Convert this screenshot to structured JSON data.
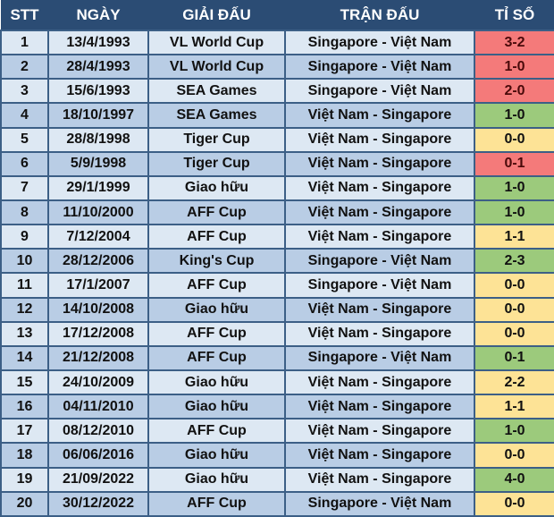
{
  "headers": [
    "STT",
    "NGÀY",
    "GIẢI ĐẤU",
    "TRẬN ĐẤU",
    "TỈ SỐ"
  ],
  "colors": {
    "header": "#2b4c74",
    "row_odd": "#dde8f3",
    "row_even": "#b9cde5",
    "loss": "#f47a7a",
    "win": "#9cca7c",
    "draw": "#fde396"
  },
  "rows": [
    {
      "stt": "1",
      "date": "13/4/1993",
      "event": "VL World Cup",
      "match": "Singapore - Việt Nam",
      "score": "3-2",
      "result": "loss"
    },
    {
      "stt": "2",
      "date": "28/4/1993",
      "event": "VL World Cup",
      "match": "Singapore - Việt Nam",
      "score": "1-0",
      "result": "loss"
    },
    {
      "stt": "3",
      "date": "15/6/1993",
      "event": "SEA Games",
      "match": "Singapore - Việt Nam",
      "score": "2-0",
      "result": "loss"
    },
    {
      "stt": "4",
      "date": "18/10/1997",
      "event": "SEA Games",
      "match": "Việt Nam - Singapore",
      "score": "1-0",
      "result": "win"
    },
    {
      "stt": "5",
      "date": "28/8/1998",
      "event": "Tiger Cup",
      "match": "Việt Nam - Singapore",
      "score": "0-0",
      "result": "draw"
    },
    {
      "stt": "6",
      "date": "5/9/1998",
      "event": "Tiger Cup",
      "match": "Việt Nam - Singapore",
      "score": "0-1",
      "result": "loss"
    },
    {
      "stt": "7",
      "date": "29/1/1999",
      "event": "Giao hữu",
      "match": "Việt Nam - Singapore",
      "score": "1-0",
      "result": "win"
    },
    {
      "stt": "8",
      "date": "11/10/2000",
      "event": "AFF Cup",
      "match": "Việt Nam - Singapore",
      "score": "1-0",
      "result": "win"
    },
    {
      "stt": "9",
      "date": "7/12/2004",
      "event": "AFF Cup",
      "match": "Việt Nam - Singapore",
      "score": "1-1",
      "result": "draw"
    },
    {
      "stt": "10",
      "date": "28/12/2006",
      "event": "King's Cup",
      "match": "Singapore - Việt Nam",
      "score": "2-3",
      "result": "win"
    },
    {
      "stt": "11",
      "date": "17/1/2007",
      "event": "AFF Cup",
      "match": "Singapore - Việt Nam",
      "score": "0-0",
      "result": "draw"
    },
    {
      "stt": "12",
      "date": "14/10/2008",
      "event": "Giao hữu",
      "match": "Việt Nam - Singapore",
      "score": "0-0",
      "result": "draw"
    },
    {
      "stt": "13",
      "date": "17/12/2008",
      "event": "AFF Cup",
      "match": "Việt Nam - Singapore",
      "score": "0-0",
      "result": "draw"
    },
    {
      "stt": "14",
      "date": "21/12/2008",
      "event": "AFF Cup",
      "match": "Singapore - Việt Nam",
      "score": "0-1",
      "result": "win"
    },
    {
      "stt": "15",
      "date": "24/10/2009",
      "event": "Giao hữu",
      "match": "Việt Nam - Singapore",
      "score": "2-2",
      "result": "draw"
    },
    {
      "stt": "16",
      "date": "04/11/2010",
      "event": "Giao hữu",
      "match": "Việt Nam - Singapore",
      "score": "1-1",
      "result": "draw"
    },
    {
      "stt": "17",
      "date": "08/12/2010",
      "event": "AFF Cup",
      "match": "Việt Nam - Singapore",
      "score": "1-0",
      "result": "win"
    },
    {
      "stt": "18",
      "date": "06/06/2016",
      "event": "Giao hữu",
      "match": "Việt Nam - Singapore",
      "score": "0-0",
      "result": "draw"
    },
    {
      "stt": "19",
      "date": "21/09/2022",
      "event": "Giao hữu",
      "match": "Việt Nam - Singapore",
      "score": "4-0",
      "result": "win"
    },
    {
      "stt": "20",
      "date": "30/12/2022",
      "event": "AFF Cup",
      "match": "Singapore - Việt Nam",
      "score": "0-0",
      "result": "draw"
    }
  ]
}
